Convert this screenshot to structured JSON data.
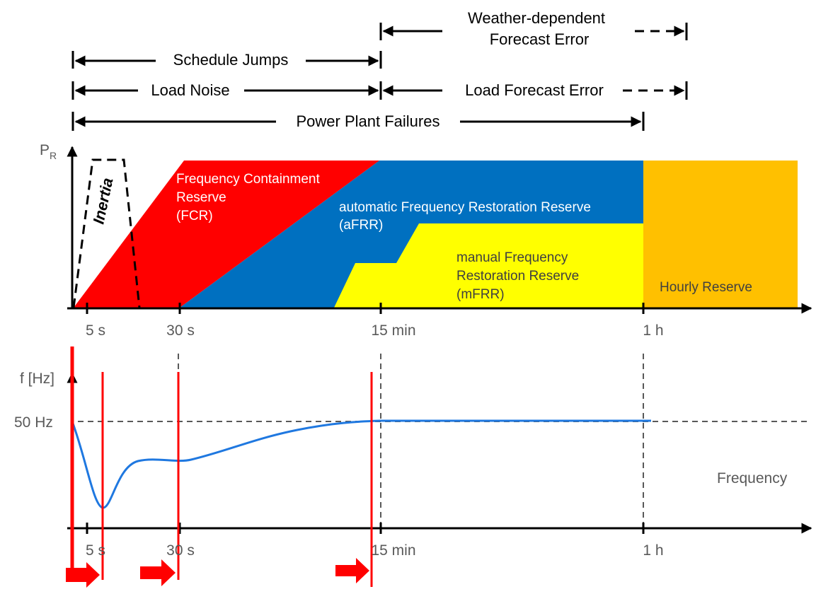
{
  "ranges": {
    "weather_line1": "Weather-dependent",
    "weather_line2": "Forecast Error",
    "schedule_jumps": "Schedule Jumps",
    "load_noise": "Load Noise",
    "load_forecast_error": "Load Forecast Error",
    "power_plant_failures": "Power Plant Failures"
  },
  "reserve_chart": {
    "y_axis_label": "P",
    "y_axis_subscript": "R",
    "inertia": "Inertia",
    "fcr_line1": "Frequency Containment",
    "fcr_line2": "Reserve",
    "fcr_line3": "(FCR)",
    "afrr_line1": "automatic Frequency Restoration Reserve",
    "afrr_line2": "(aFRR)",
    "mfrr_line1": "manual Frequency",
    "mfrr_line2": "Restoration Reserve",
    "mfrr_line3": "(mFRR)",
    "hourly": "Hourly Reserve",
    "ticks": [
      "5 s",
      "30 s",
      "15 min",
      "1 h"
    ]
  },
  "frequency_chart": {
    "y_axis_label": "f [Hz]",
    "nominal_label": "50 Hz",
    "series_label": "Frequency",
    "ticks": [
      "5 s",
      "30 s",
      "15 min",
      "1 h"
    ]
  },
  "colors": {
    "fcr": "#ff0000",
    "afrr": "#0070c0",
    "mfrr": "#ffff00",
    "hourly": "#ffc000",
    "frequency_curve": "#1f78e0",
    "markers": "#ff0000"
  }
}
